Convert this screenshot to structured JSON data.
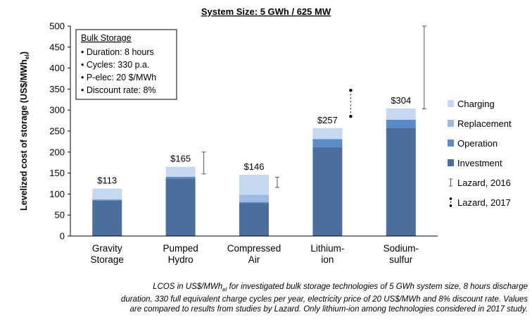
{
  "chart_data": {
    "type": "bar",
    "stacked": true,
    "title": "System Size: 5 GWh / 625 MW",
    "ylabel": "Levelized cost of storage (US$/MWh",
    "ylabel_sub": "el",
    "ylabel_close": ")",
    "ylim": [
      0,
      500
    ],
    "yticks": [
      0,
      50,
      100,
      150,
      200,
      250,
      300,
      350,
      400,
      450,
      500
    ],
    "categories": [
      [
        "Gravity",
        "Storage"
      ],
      [
        "Pumped",
        "Hydro"
      ],
      [
        "Compressed",
        "Air"
      ],
      [
        "Lithium-",
        "ion"
      ],
      [
        "Sodium-",
        "sulfur"
      ]
    ],
    "series": [
      {
        "name": "Investment",
        "color": "#4a6f9d",
        "values": [
          84,
          137,
          78,
          212,
          258
        ]
      },
      {
        "name": "Operation",
        "color": "#5b8bc9",
        "values": [
          3,
          4,
          3,
          19,
          19
        ]
      },
      {
        "name": "Replacement",
        "color": "#9cb9e0",
        "values": [
          0,
          0,
          17,
          0,
          0
        ]
      },
      {
        "name": "Charging",
        "color": "#c5d8ef",
        "values": [
          26,
          24,
          48,
          26,
          27
        ]
      }
    ],
    "totals": [
      "$113",
      "$165",
      "$146",
      "$257",
      "$304"
    ],
    "lazard_2016": [
      {
        "category": 1,
        "low": 148,
        "high": 200
      },
      {
        "category": 2,
        "low": 116,
        "high": 140
      },
      {
        "category": 4,
        "low": 303,
        "high": 500
      }
    ],
    "lazard_2017": [
      {
        "category": 3,
        "low": 285,
        "high": 347
      }
    ],
    "legend": [
      {
        "label": "Charging",
        "color": "#c5d8ef",
        "kind": "swatch"
      },
      {
        "label": "Replacement",
        "color": "#9cb9e0",
        "kind": "swatch"
      },
      {
        "label": "Operation",
        "color": "#5b8bc9",
        "kind": "swatch"
      },
      {
        "label": "Investment",
        "color": "#4a6f9d",
        "kind": "swatch"
      },
      {
        "label": "Lazard, 2016",
        "kind": "range-2016"
      },
      {
        "label": "Lazard, 2017",
        "kind": "range-2017"
      }
    ],
    "legend_position": "right",
    "annotation": {
      "title": "Bulk Storage",
      "items": [
        "• Duration: 8 hours",
        "• Cycles: 330 p.a.",
        "• P-elec: 20 $/MWh",
        "• Discount rate: 8%"
      ]
    }
  },
  "caption": {
    "line1_start": "LCOS in US$/MWh",
    "line1_sub": "el",
    "line1_end": " for investigated bulk storage technologies of 5 GWh system size, 8 hours discharge",
    "line2": "duration, 330 full equivalent charge cycles per year, electricity price of 20 US$/MWh and 8% discount rate. Values",
    "line3": "are compared to results from studies by Lazard. Only lithium-ion among technologies considered in 2017 study."
  }
}
